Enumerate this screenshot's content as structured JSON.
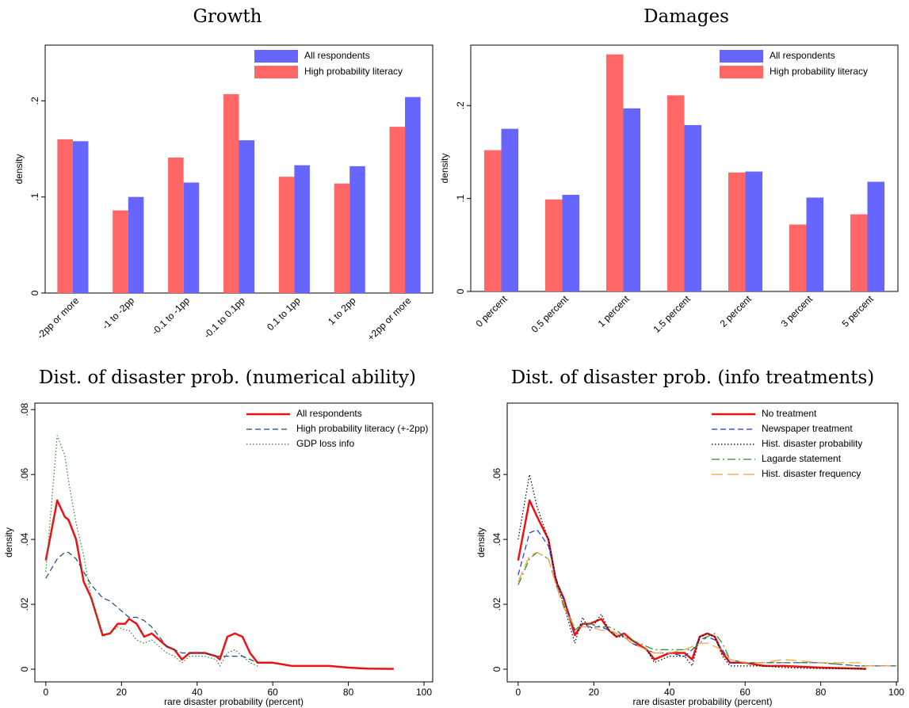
{
  "chart_data": [
    {
      "type": "bar",
      "title": "Growth",
      "y_label": "density",
      "categories": [
        "-2pp or more",
        "-1 to -2pp",
        "-0.1 to -1pp",
        "-0.1 to 0.1pp",
        "0.1 to 1pp",
        "1 to 2pp",
        "+2pp or more"
      ],
      "series": [
        {
          "name": "High probability literacy",
          "color": "#ff6666",
          "values": [
            0.16,
            0.086,
            0.141,
            0.207,
            0.121,
            0.114,
            0.173
          ]
        },
        {
          "name": "All respondents",
          "color": "#6666ff",
          "values": [
            0.158,
            0.1,
            0.115,
            0.159,
            0.133,
            0.132,
            0.204
          ]
        }
      ],
      "legend_order": [
        "All respondents",
        "High probability literacy"
      ],
      "ylim": [
        0,
        0.258
      ],
      "yticks": [
        0,
        {
          "value": 0.1,
          "label": ".1"
        },
        {
          "value": 0.2,
          "label": ".2"
        }
      ],
      "legend": "top-right"
    },
    {
      "type": "bar",
      "title": "Damages",
      "y_label": "density",
      "categories": [
        "0 percent",
        "0.5 percent",
        "1 percent",
        "1.5 percent",
        "2 percent",
        "3 percent",
        "5 percent"
      ],
      "series": [
        {
          "name": "High probability literacy",
          "color": "#ff6666",
          "values": [
            0.152,
            0.099,
            0.255,
            0.211,
            0.128,
            0.072,
            0.083
          ]
        },
        {
          "name": "All respondents",
          "color": "#6666ff",
          "values": [
            0.175,
            0.104,
            0.197,
            0.179,
            0.129,
            0.101,
            0.118
          ]
        }
      ],
      "legend_order": [
        "All respondents",
        "High probability literacy"
      ],
      "ylim": [
        0,
        0.265
      ],
      "yticks": [
        0,
        {
          "value": 0.1,
          "label": ".1"
        },
        {
          "value": 0.2,
          "label": ".2"
        }
      ],
      "legend": "top-right"
    },
    {
      "type": "line",
      "title": "Dist. of disaster prob. (numerical ability)",
      "y_label": "density",
      "x_label": "rare disaster probability (percent)",
      "x": [
        0,
        3,
        5,
        6,
        8,
        10,
        12,
        15,
        17,
        19,
        21,
        22,
        24,
        26,
        28,
        30,
        32,
        34,
        36,
        38,
        42,
        45,
        46,
        48,
        50,
        52,
        54,
        56,
        60,
        65,
        70,
        75,
        80,
        85,
        92
      ],
      "series": [
        {
          "name": "All respondents",
          "color": "#ee1111",
          "style": "solid",
          "values": [
            0.0335,
            0.052,
            0.047,
            0.046,
            0.04,
            0.027,
            0.022,
            0.0105,
            0.011,
            0.014,
            0.014,
            0.0155,
            0.014,
            0.01,
            0.011,
            0.009,
            0.007,
            0.006,
            0.003,
            0.005,
            0.005,
            0.004,
            0.003,
            0.01,
            0.011,
            0.01,
            0.005,
            0.002,
            0.002,
            0.001,
            0.001,
            0.001,
            0.0005,
            0.0002,
            0.0001
          ]
        },
        {
          "name": "High probability literacy (+-2pp)",
          "color": "#1a4c7a",
          "style": "dashed",
          "values": [
            0.028,
            0.034,
            0.036,
            0.036,
            0.034,
            0.03,
            0.026,
            0.022,
            0.021,
            0.019,
            0.017,
            0.016,
            0.016,
            0.015,
            0.013,
            0.01,
            0.007,
            0.006,
            0.005,
            0.005,
            0.005,
            0.004,
            0.004,
            0.004,
            0.004,
            0.004,
            0.003,
            0.002,
            null,
            null,
            null,
            null,
            null,
            null,
            null
          ]
        },
        {
          "name": "GDP loss info",
          "color": "#2a8a2a",
          "style": "dotted",
          "values": [
            0.03,
            0.072,
            0.066,
            0.058,
            0.045,
            0.035,
            0.022,
            0.01,
            0.011,
            0.013,
            0.012,
            0.012,
            0.009,
            0.008,
            0.009,
            0.007,
            0.005,
            0.004,
            0.002,
            0.004,
            0.004,
            0.003,
            0.001,
            0.005,
            0.006,
            0.004,
            0.002,
            0.001,
            null,
            null,
            null,
            null,
            null,
            null,
            null
          ]
        }
      ],
      "xlim": [
        -2.9,
        102.3
      ],
      "xticks": [
        0,
        20,
        40,
        60,
        80,
        100
      ],
      "ylim": [
        -0.0039,
        0.082
      ],
      "yticks": [
        0,
        {
          "value": 0.02,
          "label": ".02"
        },
        {
          "value": 0.04,
          "label": ".04"
        },
        {
          "value": 0.06,
          "label": ".06"
        },
        {
          "value": 0.08,
          "label": ".08"
        }
      ],
      "legend": "top-right"
    },
    {
      "type": "line",
      "title": "Dist. of disaster prob. (info treatments)",
      "y_label": "density",
      "x_label": "rare disaster probability (percent)",
      "x": [
        0,
        3,
        5,
        8,
        10,
        12,
        15,
        17,
        19,
        22,
        24,
        26,
        28,
        30,
        34,
        36,
        40,
        44,
        46,
        48,
        50,
        52,
        54,
        56,
        60,
        65,
        70,
        80,
        90,
        92,
        100
      ],
      "series": [
        {
          "name": "No treatment",
          "color": "#ee1111",
          "style": "solid",
          "values": [
            0.0335,
            0.052,
            0.047,
            0.04,
            0.027,
            0.022,
            0.0105,
            0.014,
            0.014,
            0.0155,
            0.012,
            0.01,
            0.011,
            0.009,
            0.006,
            0.003,
            0.005,
            0.005,
            0.003,
            0.01,
            0.011,
            0.01,
            0.005,
            0.002,
            0.002,
            0.001,
            0.001,
            0.0005,
            0.0002,
            0.0001,
            null
          ]
        },
        {
          "name": "Newspaper treatment",
          "color": "#2233dd",
          "style": "dashed",
          "values": [
            0.029,
            0.042,
            0.043,
            0.038,
            0.028,
            0.022,
            0.012,
            0.014,
            0.013,
            0.013,
            0.012,
            0.011,
            0.01,
            0.008,
            0.006,
            0.005,
            0.005,
            0.004,
            0.006,
            0.009,
            0.01,
            0.009,
            0.006,
            0.002,
            0.002,
            0.002,
            0.002,
            0.002,
            0.001,
            0.001,
            0.001
          ]
        },
        {
          "name": "Hist. disaster probability",
          "color": "#000000",
          "style": "dotted",
          "values": [
            0.04,
            0.06,
            0.05,
            0.04,
            0.028,
            0.02,
            0.008,
            0.016,
            0.012,
            0.017,
            0.012,
            0.01,
            0.01,
            0.008,
            0.006,
            0.002,
            0.004,
            0.004,
            0.001,
            0.01,
            0.011,
            0.01,
            0.004,
            0.001,
            0.001,
            0.001,
            0.0005,
            0.0002,
            0.0001,
            0.0001,
            null
          ]
        },
        {
          "name": "Lagarde statement",
          "color": "#2a8a2a",
          "style": "dashdot",
          "values": [
            0.026,
            0.034,
            0.036,
            0.034,
            0.026,
            0.02,
            0.012,
            0.014,
            0.014,
            0.013,
            0.013,
            0.012,
            0.01,
            0.009,
            0.007,
            0.006,
            0.006,
            0.006,
            0.006,
            0.008,
            0.01,
            0.011,
            0.008,
            0.003,
            0.002,
            0.002,
            0.002,
            0.002,
            0.001,
            0.001,
            0.001
          ]
        },
        {
          "name": "Hist. disaster frequency",
          "color": "#f0a030",
          "style": "longdash",
          "values": [
            0.027,
            0.035,
            0.036,
            0.034,
            0.026,
            0.019,
            0.013,
            0.013,
            0.013,
            0.012,
            0.012,
            0.011,
            0.01,
            0.008,
            0.006,
            0.005,
            0.005,
            0.006,
            0.007,
            0.008,
            0.008,
            0.007,
            0.006,
            0.003,
            0.002,
            0.002,
            0.003,
            0.002,
            0.002,
            0.001,
            0.001
          ]
        }
      ],
      "xlim": [
        -2.9,
        100.4
      ],
      "xticks": [
        0,
        20,
        40,
        60,
        80,
        100
      ],
      "ylim": [
        -0.0039,
        0.082
      ],
      "yticks": [
        0,
        {
          "value": 0.02,
          "label": ".02"
        },
        {
          "value": 0.04,
          "label": ".04"
        },
        {
          "value": 0.06,
          "label": ".06"
        }
      ],
      "legend": "top-right"
    }
  ]
}
